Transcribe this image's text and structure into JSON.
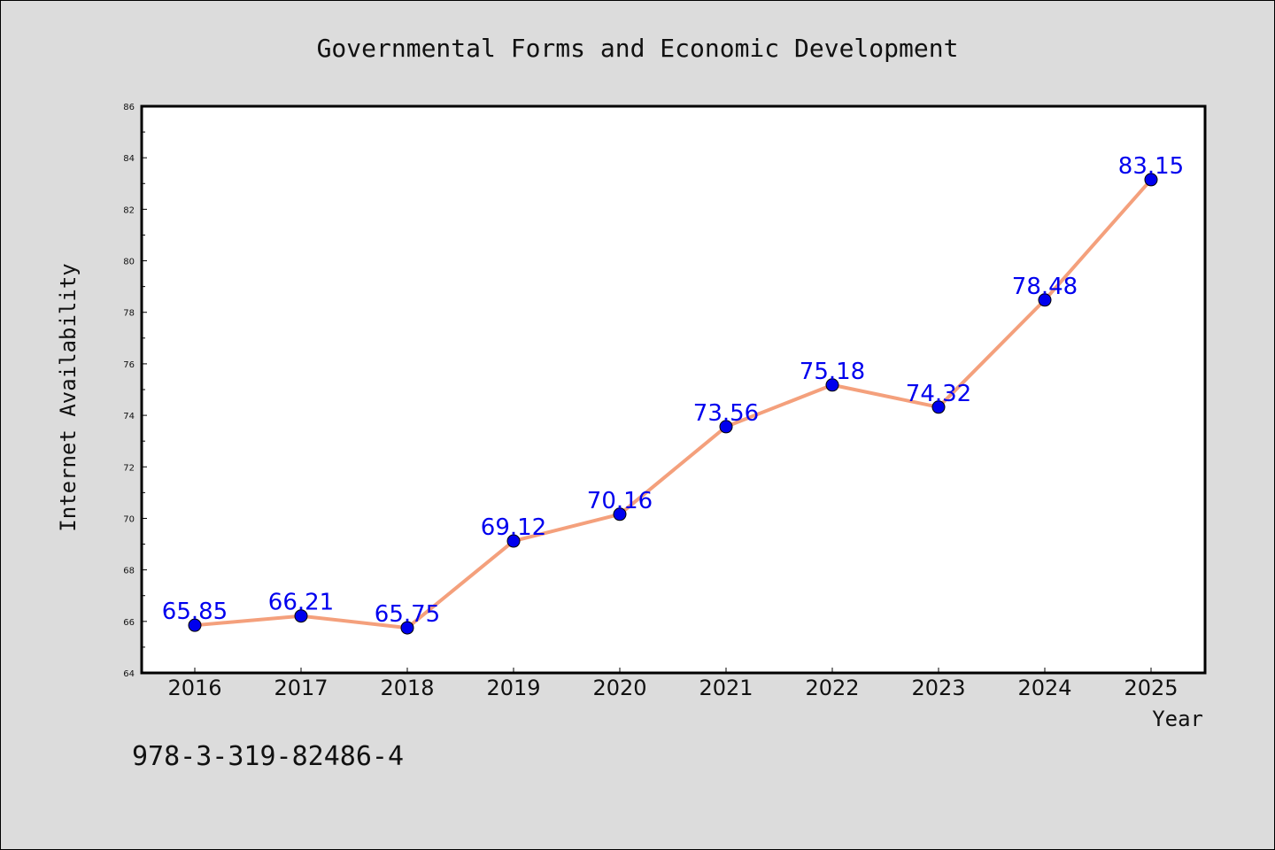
{
  "chart_data": {
    "type": "line",
    "title": "Governmental Forms and Economic Development",
    "xlabel": "Year",
    "ylabel": "Internet Availability",
    "categories": [
      "2016",
      "2017",
      "2018",
      "2019",
      "2020",
      "2021",
      "2022",
      "2023",
      "2024",
      "2025"
    ],
    "series": [
      {
        "values": [
          65.85,
          66.21,
          65.75,
          69.12,
          70.16,
          73.56,
          75.18,
          74.32,
          78.48,
          83.15
        ],
        "labels": [
          "65.85",
          "66.21",
          "65.75",
          "69.12",
          "70.16",
          "73.56",
          "75.18",
          "74.32",
          "78.48",
          "83.15"
        ]
      }
    ],
    "ylim": [
      64,
      86
    ],
    "yticks": [
      "64",
      "66",
      "68",
      "70",
      "72",
      "74",
      "76",
      "78",
      "80",
      "82",
      "84",
      "86"
    ],
    "grid": false,
    "colors": {
      "line": "#f4a07c",
      "marker": "#0000ee",
      "data_label": "#0000ee",
      "plot_background": "#ffffff",
      "figure_background": "#dcdcdc"
    }
  },
  "annotation": {
    "isbn": "978-3-319-82486-4"
  }
}
